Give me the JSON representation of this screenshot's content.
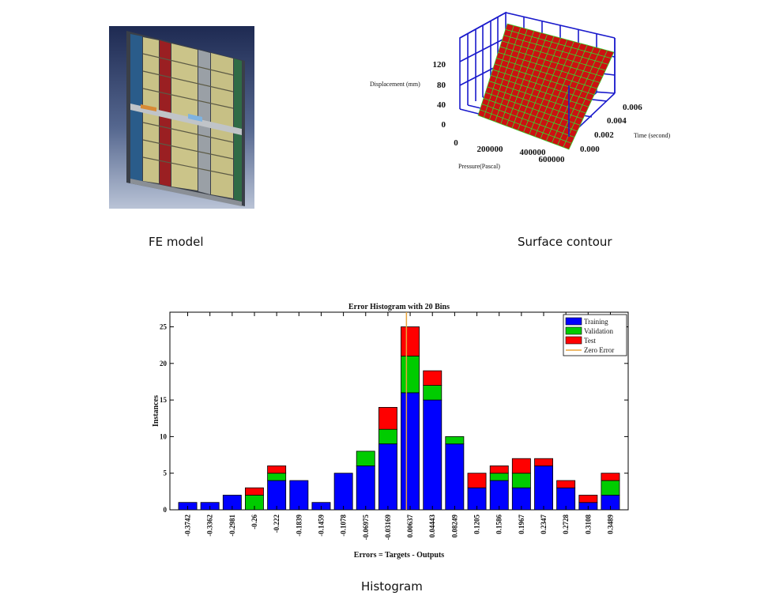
{
  "captions": {
    "fe_model": "FE model",
    "surface_contour": "Surface contour",
    "histogram": "Histogram"
  },
  "fe_image": {
    "icon": "fe-model-render"
  },
  "surface": {
    "zlabel": "Displacement (mm)",
    "xlabel": "Pressure(Pascal)",
    "ylabel": "Time (second)",
    "z_ticks": [
      "120",
      "80",
      "40",
      "0"
    ],
    "x_ticks": [
      "0",
      "200000",
      "400000",
      "600000"
    ],
    "y_ticks": [
      "0.000",
      "0.002",
      "0.004",
      "0.006"
    ],
    "colors": {
      "surface": "#cc1111",
      "grid": "#33dd33",
      "box": "#1a1acc"
    }
  },
  "chart_data": {
    "type": "bar",
    "title": "Error Histogram with 20 Bins",
    "xlabel": "Errors = Targets - Outputs",
    "ylabel": "Instances",
    "ylim": [
      0,
      27
    ],
    "y_ticks": [
      "0",
      "5",
      "10",
      "15",
      "20",
      "25"
    ],
    "categories": [
      "-0.3742",
      "-0.3362",
      "-0.2981",
      "-0.26",
      "-0.222",
      "-0.1839",
      "-0.1459",
      "-0.1078",
      "-0.06975",
      "-0.03169",
      "0.00637",
      "0.04443",
      "0.08249",
      "0.1205",
      "0.1586",
      "0.1967",
      "0.2347",
      "0.2728",
      "0.3108",
      "0.3489"
    ],
    "stacked": true,
    "series": [
      {
        "name": "Training",
        "color": "#0000ff",
        "values": [
          1,
          1,
          2,
          0,
          4,
          4,
          1,
          5,
          6,
          9,
          16,
          15,
          9,
          3,
          4,
          3,
          6,
          3,
          1,
          2
        ]
      },
      {
        "name": "Validation",
        "color": "#00cc00",
        "values": [
          0,
          0,
          0,
          2,
          1,
          0,
          0,
          0,
          2,
          2,
          5,
          2,
          1,
          0,
          1,
          2,
          0,
          0,
          0,
          2
        ]
      },
      {
        "name": "Test",
        "color": "#ff0000",
        "values": [
          0,
          0,
          0,
          1,
          1,
          0,
          0,
          0,
          0,
          3,
          4,
          2,
          0,
          2,
          1,
          2,
          1,
          1,
          1,
          1
        ]
      }
    ],
    "zero_error": {
      "name": "Zero Error",
      "color": "#e8a33a",
      "x": 0
    },
    "legend": "top-right",
    "grid": false
  }
}
